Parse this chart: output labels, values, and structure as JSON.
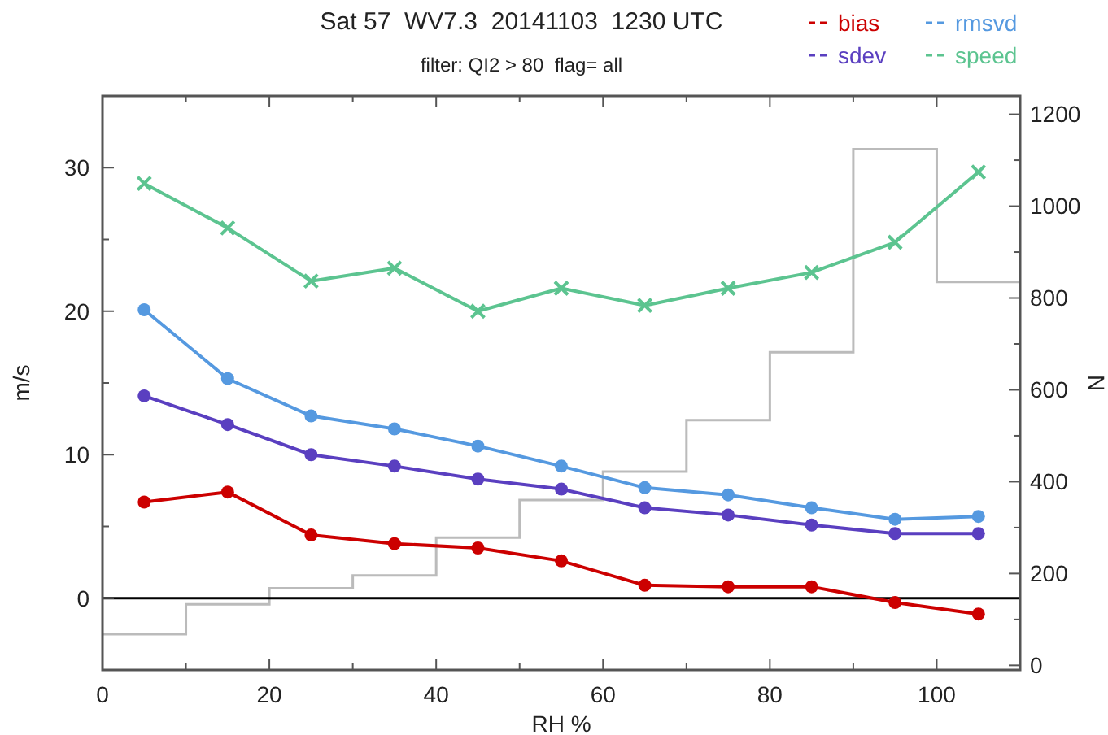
{
  "chart_data": {
    "type": "line",
    "title": "Sat 57  WV7.3  20141103  1230 UTC",
    "subtitle": "filter: QI2 > 80  flag= all",
    "xlabel": "RH %",
    "ylabel": "m/s",
    "y2label": "N",
    "x": [
      5,
      15,
      25,
      35,
      45,
      55,
      65,
      75,
      85,
      95,
      105
    ],
    "series": [
      {
        "name": "bias",
        "color": "#cc0000",
        "marker": "circle",
        "values": [
          6.7,
          7.4,
          4.4,
          3.8,
          3.5,
          2.6,
          0.9,
          0.8,
          0.8,
          -0.3,
          -1.1
        ]
      },
      {
        "name": "sdev",
        "color": "#5a3fc0",
        "marker": "circle",
        "values": [
          14.1,
          12.1,
          10.0,
          9.2,
          8.3,
          7.6,
          6.3,
          5.8,
          5.1,
          4.5,
          4.5
        ]
      },
      {
        "name": "rmsvd",
        "color": "#5599e0",
        "marker": "circle",
        "values": [
          20.1,
          15.3,
          12.7,
          11.8,
          10.6,
          9.2,
          7.7,
          7.2,
          6.3,
          5.5,
          5.7
        ]
      },
      {
        "name": "speed",
        "color": "#5cc490",
        "marker": "cross",
        "values": [
          28.9,
          25.8,
          22.1,
          23.0,
          20.0,
          21.6,
          20.4,
          21.6,
          22.7,
          24.8,
          29.7
        ]
      },
      {
        "type": "histogram",
        "axis": "y2",
        "color": "#bbbbbb",
        "bins": [
          0,
          10,
          20,
          30,
          40,
          50,
          60,
          70,
          80,
          90,
          100,
          110
        ],
        "values": [
          68,
          133,
          168,
          196,
          278,
          360,
          422,
          534,
          682,
          1124,
          835
        ]
      }
    ],
    "xlim": [
      0,
      110
    ],
    "xticks": [
      0,
      {
        "value": 10,
        "label": null
      },
      20,
      {
        "value": 30,
        "label": null
      },
      40,
      {
        "value": 50,
        "label": null
      },
      60,
      {
        "value": 70,
        "label": null
      },
      80,
      {
        "value": 90,
        "label": null
      },
      100
    ],
    "ylim": [
      -5,
      35
    ],
    "yticks": [
      {
        "value": -5,
        "label": null
      },
      0,
      {
        "value": 5,
        "label": null
      },
      10,
      {
        "value": 15,
        "label": null
      },
      20,
      {
        "value": 25,
        "label": null
      },
      30
    ],
    "y2lim": [
      -10,
      1240
    ],
    "y2ticks": [
      0,
      {
        "value": 100,
        "label": null
      },
      200,
      {
        "value": 300,
        "label": null
      },
      400,
      {
        "value": 500,
        "label": null
      },
      600,
      {
        "value": 700,
        "label": null
      },
      800,
      {
        "value": 900,
        "label": null
      },
      1000,
      {
        "value": 1100,
        "label": null
      },
      1200
    ],
    "ref_lines": [
      {
        "axis": "y",
        "value": 0,
        "color": "#000000"
      }
    ],
    "legend": "top right",
    "line_style": "solid"
  }
}
